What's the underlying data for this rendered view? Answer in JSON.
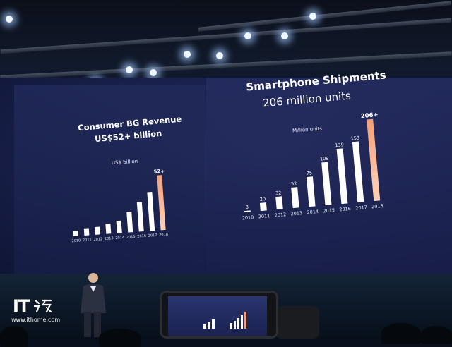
{
  "left_chart": {
    "title_line1": "Consumer BG Revenue",
    "title_line2": "US$52+ billion",
    "unit_label": "US$ billion",
    "top_value_label": "52+",
    "years": [
      "2010",
      "2011",
      "2012",
      "2013",
      "2014",
      "2015",
      "2016",
      "2017",
      "2018"
    ],
    "values": [
      5,
      6.7,
      7.3,
      9.4,
      11.7,
      19.3,
      27.8,
      36.7,
      52
    ]
  },
  "right_chart": {
    "title_line1": "Smartphone Shipments",
    "title_line2": "206 million units",
    "unit_label": "Million units",
    "years": [
      "2010",
      "2011",
      "2012",
      "2013",
      "2014",
      "2015",
      "2016",
      "2017",
      "2018"
    ],
    "values": [
      3,
      20,
      32,
      52,
      75,
      108,
      139,
      153,
      206
    ],
    "value_labels": [
      "3",
      "20",
      "32",
      "52",
      "75",
      "108",
      "139",
      "153",
      "206+"
    ]
  },
  "watermark": {
    "brand": "IT",
    "url": "www.ithome.com"
  },
  "colors": {
    "bar_white": "#ffffff",
    "bar_accent": "#f3a07a",
    "screen_blue": "#1b2250"
  }
}
